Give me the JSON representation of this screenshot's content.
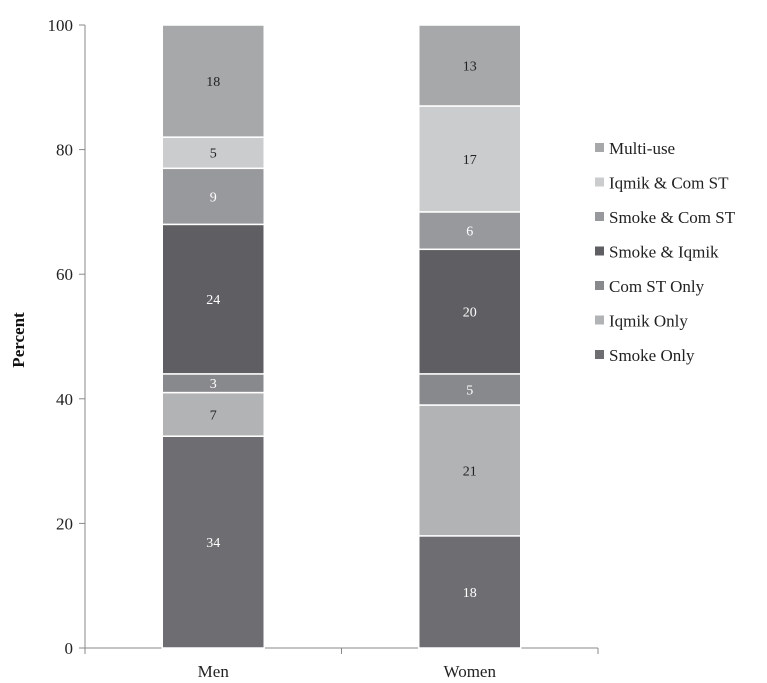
{
  "chart_data": {
    "type": "bar",
    "stacked": true,
    "title": "",
    "xlabel": "",
    "ylabel": "Percent",
    "ylim": [
      0,
      100
    ],
    "yticks": [
      0,
      20,
      40,
      60,
      80,
      100
    ],
    "categories": [
      "Men",
      "Women"
    ],
    "series": [
      {
        "name": "Smoke Only",
        "values": [
          34,
          18
        ],
        "color": "#6e6e72",
        "label_color": "#ffffff"
      },
      {
        "name": "Iqmik Only",
        "values": [
          7,
          21
        ],
        "color": "#b2b3b5",
        "label_color": "#222222"
      },
      {
        "name": "Com ST Only",
        "values": [
          3,
          5
        ],
        "color": "#88898c",
        "label_color": "#ffffff"
      },
      {
        "name": "Smoke & Iqmik",
        "values": [
          24,
          20
        ],
        "color": "#5f5f63",
        "label_color": "#ffffff"
      },
      {
        "name": "Smoke & Com ST",
        "values": [
          9,
          6
        ],
        "color": "#98999c",
        "label_color": "#ffffff"
      },
      {
        "name": "Iqmik & Com ST",
        "values": [
          5,
          17
        ],
        "color": "#cbcccd",
        "label_color": "#222222"
      },
      {
        "name": "Multi-use",
        "values": [
          18,
          13
        ],
        "color": "#a7a8aa",
        "label_color": "#222222"
      }
    ],
    "legend_position": "right",
    "legend_order": [
      "Multi-use",
      "Iqmik & Com ST",
      "Smoke & Com ST",
      "Smoke & Iqmik",
      "Com ST Only",
      "Iqmik Only",
      "Smoke Only"
    ],
    "grid": false
  }
}
